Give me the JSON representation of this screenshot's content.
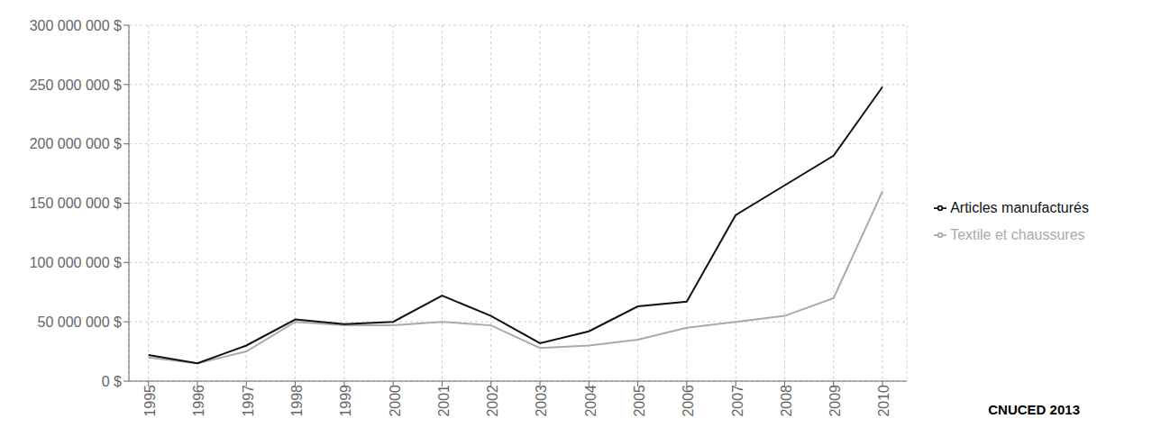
{
  "chart_data": {
    "type": "line",
    "annotation": "CNUCED 2013",
    "x": [
      1995,
      1996,
      1997,
      1998,
      1999,
      2000,
      2001,
      2002,
      2003,
      2004,
      2005,
      2006,
      2007,
      2008,
      2009,
      2010
    ],
    "series": [
      {
        "name": "Textile et chaussures",
        "color": "#aaaaaa",
        "values": [
          20000000,
          15000000,
          25000000,
          50000000,
          47000000,
          47000000,
          50000000,
          47000000,
          28000000,
          30000000,
          35000000,
          45000000,
          50000000,
          55000000,
          70000000,
          160000000
        ]
      },
      {
        "name": "Articles manufacturés",
        "color": "#111111",
        "values": [
          22000000,
          15000000,
          30000000,
          52000000,
          48000000,
          50000000,
          72000000,
          55000000,
          32000000,
          42000000,
          63000000,
          67000000,
          140000000,
          165000000,
          190000000,
          248000000
        ]
      }
    ],
    "xlim": [
      1994.6,
      2010.5
    ],
    "xticks": [
      1995,
      1996,
      1997,
      1998,
      1999,
      2000,
      2001,
      2002,
      2003,
      2004,
      2005,
      2006,
      2007,
      2008,
      2009,
      2010
    ],
    "ylim": [
      0,
      300000000
    ],
    "yticks": [
      {
        "value": 0,
        "label": "0 $"
      },
      {
        "value": 50000000,
        "label": "50 000 000 $"
      },
      {
        "value": 100000000,
        "label": "100 000 000 $"
      },
      {
        "value": 150000000,
        "label": "150 000 000 $"
      },
      {
        "value": 200000000,
        "label": "200 000 000 $"
      },
      {
        "value": 250000000,
        "label": "250 000 000 $"
      },
      {
        "value": 300000000,
        "label": "300 000 000 $"
      }
    ],
    "grid": true,
    "legend": "right"
  }
}
